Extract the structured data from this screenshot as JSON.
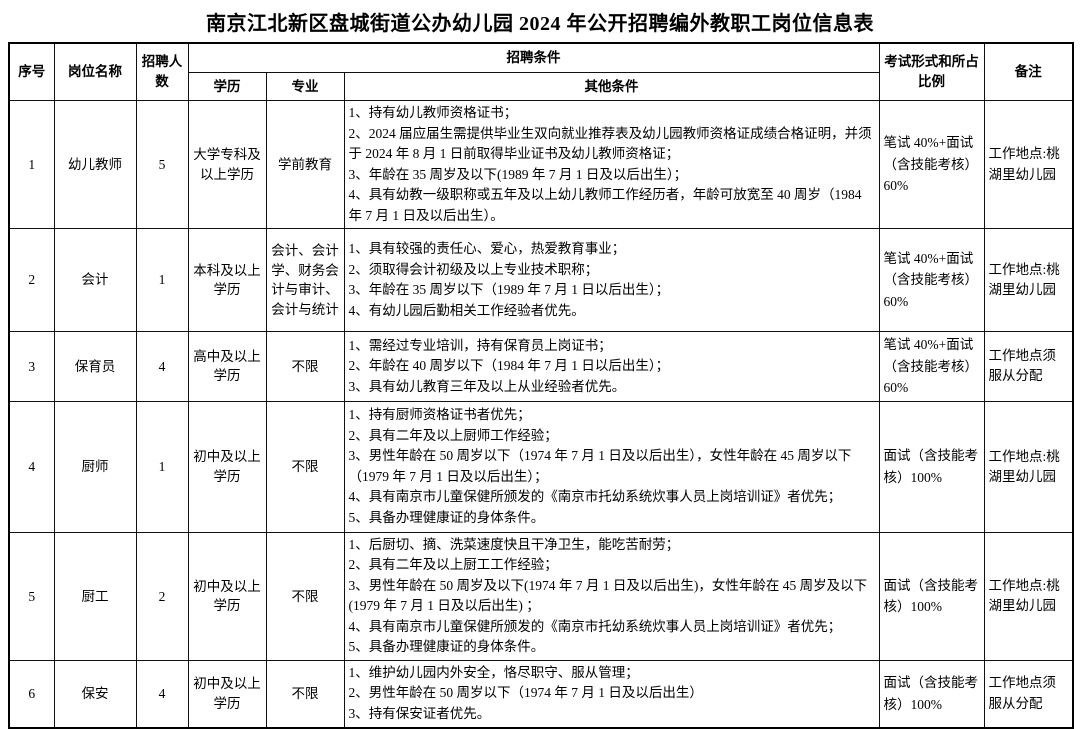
{
  "title": "南京江北新区盘城街道公办幼儿园 2024 年公开招聘编外教职工岗位信息表",
  "table": {
    "headers": {
      "xuhao": "序号",
      "gangwei": "岗位名称",
      "renshu": "招聘人数",
      "tiaojian": "招聘条件",
      "xueli": "学历",
      "zhuanye": "专业",
      "qita": "其他条件",
      "kaoshi": "考试形式和所占比例",
      "beizhu": "备注"
    },
    "rows": [
      {
        "no": "1",
        "position": "幼儿教师",
        "count": "5",
        "education": "大学专科及以上学历",
        "major": "学前教育",
        "conditions": [
          "1、持有幼儿教师资格证书；",
          "2、2024 届应届生需提供毕业生双向就业推荐表及幼儿园教师资格证成绩合格证明，并须于 2024 年 8 月 1 日前取得毕业证书及幼儿教师资格证；",
          "3、年龄在 35 周岁及以下(1989 年 7 月 1 日及以后出生）；",
          "4、具有幼教一级职称或五年及以上幼儿教师工作经历者，年龄可放宽至 40 周岁（1984 年 7 月 1 日及以后出生）。"
        ],
        "exam": "笔试 40%+面试（含技能考核）60%",
        "note": "工作地点:桃湖里幼儿园"
      },
      {
        "no": "2",
        "position": "会计",
        "count": "1",
        "education": "本科及以上学历",
        "major": "会计、会计学、财务会计与审计、会计与统计",
        "conditions": [
          "1、具有较强的责任心、爱心，热爱教育事业；",
          "2、须取得会计初级及以上专业技术职称；",
          "3、年龄在 35 周岁以下（1989 年 7 月 1 日以后出生）；",
          "4、有幼儿园后勤相关工作经验者优先。"
        ],
        "exam": "笔试 40%+面试（含技能考核）60%",
        "note": "工作地点:桃湖里幼儿园"
      },
      {
        "no": "3",
        "position": "保育员",
        "count": "4",
        "education": "高中及以上学历",
        "major": "不限",
        "conditions": [
          "1、需经过专业培训，持有保育员上岗证书；",
          "2、年龄在 40 周岁以下（1984 年 7 月 1 日以后出生）；",
          "3、具有幼儿教育三年及以上从业经验者优先。"
        ],
        "exam": "笔试 40%+面试（含技能考核）60%",
        "note": "工作地点须服从分配"
      },
      {
        "no": "4",
        "position": "厨师",
        "count": "1",
        "education": "初中及以上学历",
        "major": "不限",
        "conditions": [
          "1、持有厨师资格证书者优先；",
          "2、具有二年及以上厨师工作经验；",
          "3、男性年龄在 50 周岁以下（1974 年 7 月 1 日及以后出生），女性年龄在 45 周岁以下（1979 年 7 月 1 日及以后出生）；",
          "4、具有南京市儿童保健所颁发的《南京市托幼系统炊事人员上岗培训证》者优先；",
          "5、具备办理健康证的身体条件。"
        ],
        "exam": "面试（含技能考核）100%",
        "note": "工作地点:桃湖里幼儿园"
      },
      {
        "no": "5",
        "position": "厨工",
        "count": "2",
        "education": "初中及以上学历",
        "major": "不限",
        "conditions": [
          "1、后厨切、摘、洗菜速度快且干净卫生，能吃苦耐劳；",
          "2、具有二年及以上厨工工作经验；",
          "3、男性年龄在 50 周岁及以下(1974 年 7 月 1 日及以后出生)，女性年龄在 45 周岁及以下(1979 年 7 月 1 日及以后出生) ；",
          "4、具有南京市儿童保健所颁发的《南京市托幼系统炊事人员上岗培训证》者优先；",
          "5、具备办理健康证的身体条件。"
        ],
        "exam": "面试（含技能考核）100%",
        "note": "工作地点:桃湖里幼儿园"
      },
      {
        "no": "6",
        "position": "保安",
        "count": "4",
        "education": "初中及以上学历",
        "major": "不限",
        "conditions": [
          "1、维护幼儿园内外安全，恪尽职守、服从管理；",
          "2、男性年龄在 50 周岁以下（1974 年 7 月 1 日及以后出生）",
          "3、持有保安证者优先。"
        ],
        "exam": "面试（含技能考核）100%",
        "note": "工作地点须服从分配"
      }
    ]
  }
}
